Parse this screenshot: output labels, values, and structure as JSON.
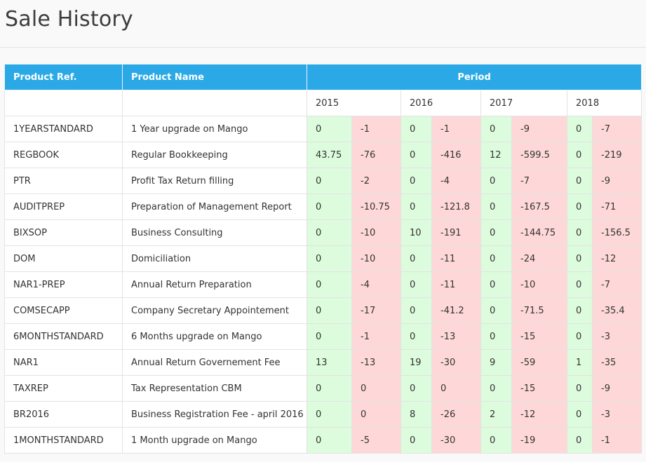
{
  "page": {
    "title": "Sale History"
  },
  "table": {
    "headers": {
      "ref": "Product Ref.",
      "name": "Product Name",
      "period": "Period"
    },
    "years": [
      "2015",
      "2016",
      "2017",
      "2018"
    ],
    "colors": {
      "header": "#2aa9e6",
      "positive": "#ddfbdd",
      "negative": "#fed8d8"
    },
    "rows": [
      {
        "ref": "1YEARSTANDARD",
        "name": "1 Year upgrade on Mango",
        "v": [
          "0",
          "-1",
          "0",
          "-1",
          "0",
          "-9",
          "0",
          "-7"
        ]
      },
      {
        "ref": "REGBOOK",
        "name": "Regular Bookkeeping",
        "v": [
          "43.75",
          "-76",
          "0",
          "-416",
          "12",
          "-599.5",
          "0",
          "-219"
        ]
      },
      {
        "ref": "PTR",
        "name": "Profit Tax Return filling",
        "v": [
          "0",
          "-2",
          "0",
          "-4",
          "0",
          "-7",
          "0",
          "-9"
        ]
      },
      {
        "ref": "AUDITPREP",
        "name": "Preparation of Management Report",
        "v": [
          "0",
          "-10.75",
          "0",
          "-121.8",
          "0",
          "-167.5",
          "0",
          "-71"
        ]
      },
      {
        "ref": "BIXSOP",
        "name": "Business Consulting",
        "v": [
          "0",
          "-10",
          "10",
          "-191",
          "0",
          "-144.75",
          "0",
          "-156.5"
        ]
      },
      {
        "ref": "DOM",
        "name": "Domiciliation",
        "v": [
          "0",
          "-10",
          "0",
          "-11",
          "0",
          "-24",
          "0",
          "-12"
        ]
      },
      {
        "ref": "NAR1-PREP",
        "name": "Annual Return Preparation",
        "v": [
          "0",
          "-4",
          "0",
          "-11",
          "0",
          "-10",
          "0",
          "-7"
        ]
      },
      {
        "ref": "COMSECAPP",
        "name": "Company Secretary Appointement",
        "v": [
          "0",
          "-17",
          "0",
          "-41.2",
          "0",
          "-71.5",
          "0",
          "-35.4"
        ]
      },
      {
        "ref": "6MONTHSTANDARD",
        "name": "6 Months upgrade on Mango",
        "v": [
          "0",
          "-1",
          "0",
          "-13",
          "0",
          "-15",
          "0",
          "-3"
        ]
      },
      {
        "ref": "NAR1",
        "name": "Annual Return Governement Fee",
        "v": [
          "13",
          "-13",
          "19",
          "-30",
          "9",
          "-59",
          "1",
          "-35"
        ]
      },
      {
        "ref": "TAXREP",
        "name": "Tax Representation CBM",
        "v": [
          "0",
          "0",
          "0",
          "0",
          "0",
          "-15",
          "0",
          "-9"
        ]
      },
      {
        "ref": "BR2016",
        "name": "Business Registration Fee - april 2016",
        "v": [
          "0",
          "0",
          "8",
          "-26",
          "2",
          "-12",
          "0",
          "-3"
        ]
      },
      {
        "ref": "1MONTHSTANDARD",
        "name": "1 Month upgrade on Mango",
        "v": [
          "0",
          "-5",
          "0",
          "-30",
          "0",
          "-19",
          "0",
          "-1"
        ]
      }
    ]
  }
}
